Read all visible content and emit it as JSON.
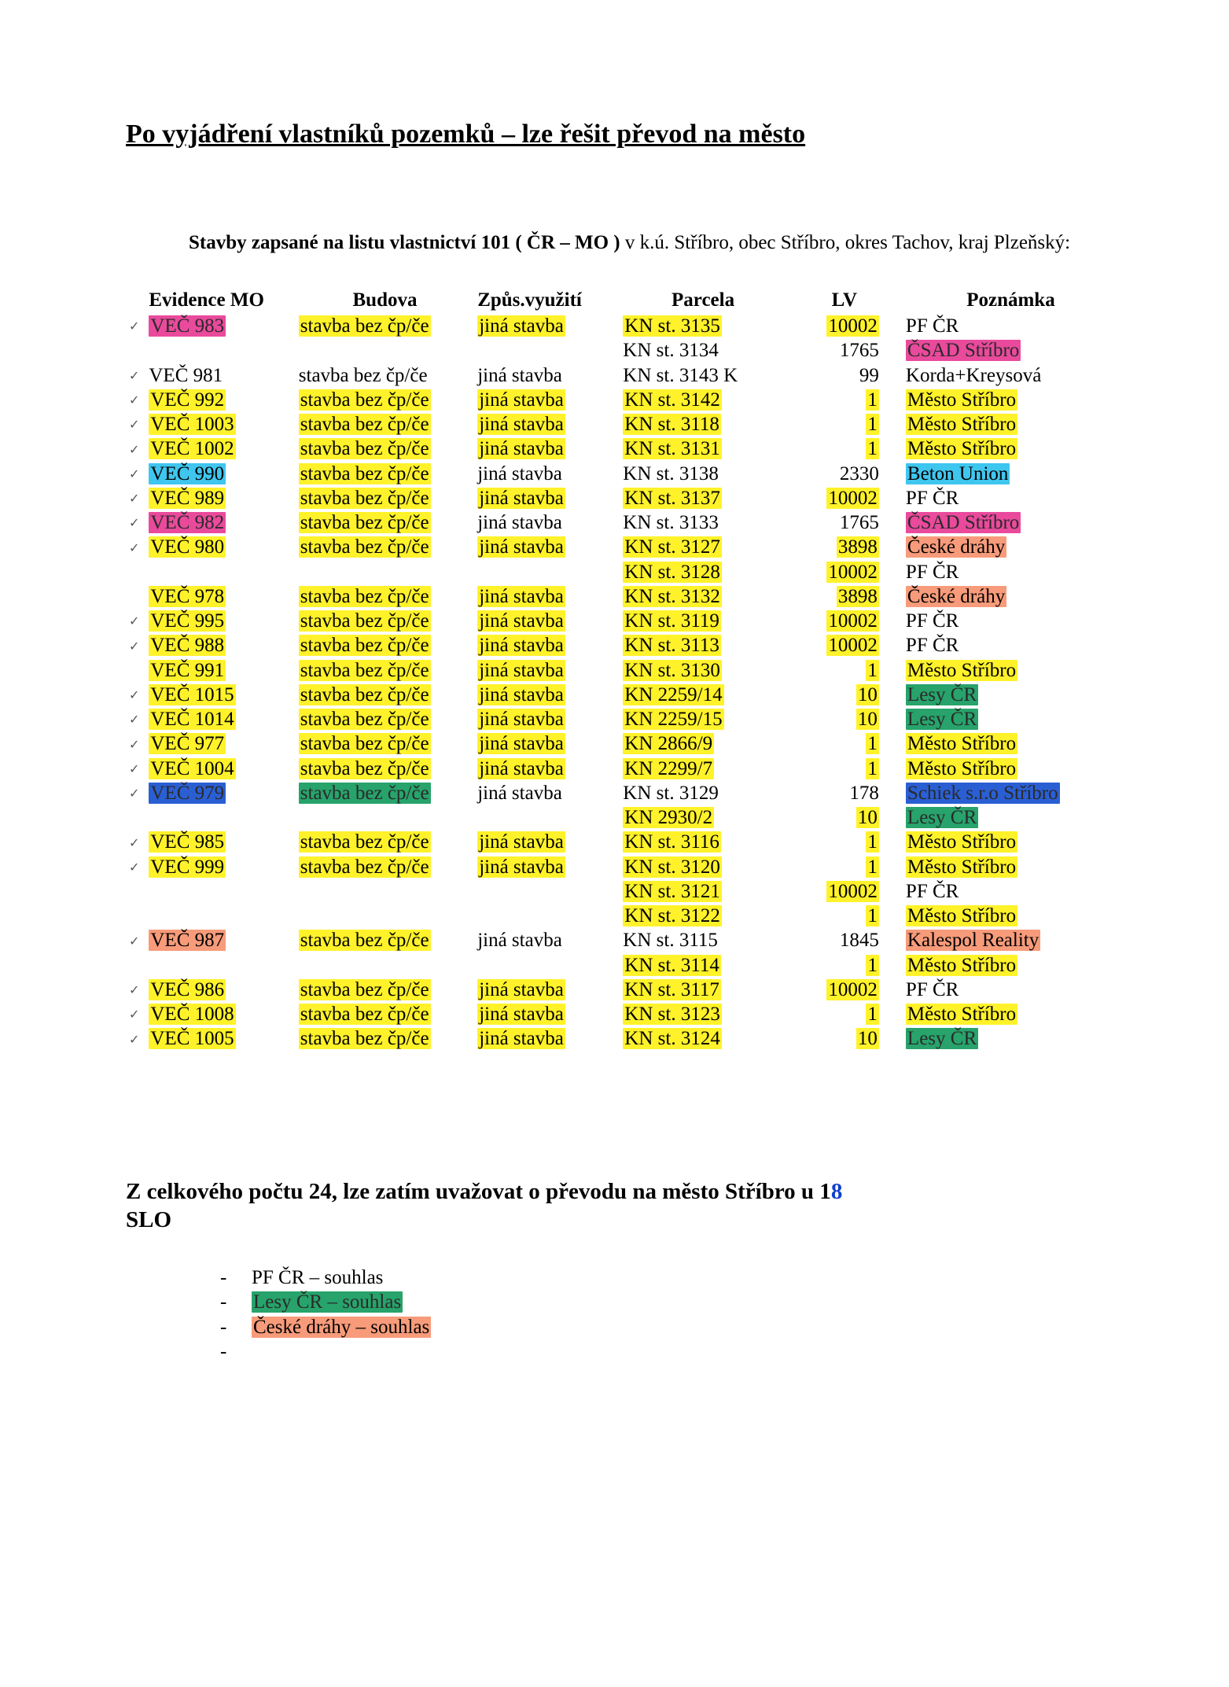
{
  "colors": {
    "yellow": "#fff22a",
    "pink": "#e94a9c",
    "cyan": "#3fc6ef",
    "green": "#27a36b",
    "salmon": "#f79b7a",
    "blue": "#2a5fd4",
    "text_black": "#000000",
    "text_dim": "#2a2a2a"
  },
  "title": "Po vyjádření vlastníků pozemků – lze řešit převod na město",
  "intro": {
    "prefix_bold": "Stavby zapsané na listu vlastnictví 101 ( ČR – MO )",
    "rest": " v k.ú. Stříbro, obec Stříbro, okres Tachov, kraj Plzeňský:"
  },
  "columns": {
    "evidence": "Evidence MO",
    "budova": "Budova",
    "vyuziti": "Způs.využití",
    "parcela": "Parcela",
    "lv": "LV",
    "poznamka": "Poznámka"
  },
  "col_widths": {
    "evidence": "180px",
    "budova": "215px",
    "vyuziti": "175px",
    "parcela": "200px",
    "lv": "140px",
    "poznamka": "260px"
  },
  "rows": [
    {
      "tick": "✓",
      "ev": {
        "t": "VEČ 983",
        "bg": "pink",
        "fg": "text_dim"
      },
      "bud": {
        "t": "stavba bez čp/če",
        "bg": "yellow"
      },
      "vy": {
        "t": "jiná stavba",
        "bg": "yellow"
      },
      "par": {
        "t": "KN st. 3135",
        "bg": "yellow"
      },
      "lv": {
        "t": "10002",
        "bg": "yellow"
      },
      "poz": {
        "t": "PF ČR"
      }
    },
    {
      "tick": "",
      "ev": {
        "t": ""
      },
      "bud": {
        "t": ""
      },
      "vy": {
        "t": ""
      },
      "par": {
        "t": "KN st. 3134"
      },
      "lv": {
        "t": "1765"
      },
      "poz": {
        "t": "ČSAD Stříbro",
        "bg": "pink",
        "fg": "text_dim"
      }
    },
    {
      "tick": "✓",
      "ev": {
        "t": "VEČ 981"
      },
      "bud": {
        "t": "stavba bez čp/če"
      },
      "vy": {
        "t": "jiná stavba"
      },
      "par": {
        "t": "KN st. 3143 K"
      },
      "lv": {
        "t": "99"
      },
      "poz": {
        "t": "Korda+Kreysová"
      }
    },
    {
      "tick": "✓",
      "ev": {
        "t": "VEČ 992",
        "bg": "yellow"
      },
      "bud": {
        "t": "stavba bez čp/če",
        "bg": "yellow"
      },
      "vy": {
        "t": "jiná stavba",
        "bg": "yellow"
      },
      "par": {
        "t": "KN st. 3142",
        "bg": "yellow"
      },
      "lv": {
        "t": "1",
        "bg": "yellow"
      },
      "poz": {
        "t": "Město Stříbro",
        "bg": "yellow"
      }
    },
    {
      "tick": "✓",
      "ev": {
        "t": "VEČ 1003",
        "bg": "yellow"
      },
      "bud": {
        "t": "stavba bez čp/če",
        "bg": "yellow"
      },
      "vy": {
        "t": "jiná stavba",
        "bg": "yellow"
      },
      "par": {
        "t": "KN st. 3118",
        "bg": "yellow"
      },
      "lv": {
        "t": "1",
        "bg": "yellow"
      },
      "poz": {
        "t": "Město Stříbro",
        "bg": "yellow"
      }
    },
    {
      "tick": "✓",
      "ev": {
        "t": "VEČ 1002",
        "bg": "yellow"
      },
      "bud": {
        "t": "stavba bez čp/če",
        "bg": "yellow"
      },
      "vy": {
        "t": "jiná stavba",
        "bg": "yellow"
      },
      "par": {
        "t": "KN st. 3131",
        "bg": "yellow"
      },
      "lv": {
        "t": "1",
        "bg": "yellow"
      },
      "poz": {
        "t": "Město Stříbro",
        "bg": "yellow"
      }
    },
    {
      "tick": "✓",
      "ev": {
        "t": "VEČ 990",
        "bg": "cyan"
      },
      "bud": {
        "t": "stavba bez čp/če",
        "bg": "yellow"
      },
      "vy": {
        "t": "jiná stavba"
      },
      "par": {
        "t": "KN st. 3138"
      },
      "lv": {
        "t": "2330"
      },
      "poz": {
        "t": "Beton Union",
        "bg": "cyan"
      }
    },
    {
      "tick": "✓",
      "ev": {
        "t": "VEČ 989",
        "bg": "yellow"
      },
      "bud": {
        "t": "stavba bez čp/če",
        "bg": "yellow"
      },
      "vy": {
        "t": "jiná stavba",
        "bg": "yellow"
      },
      "par": {
        "t": "KN st. 3137",
        "bg": "yellow"
      },
      "lv": {
        "t": "10002",
        "bg": "yellow"
      },
      "poz": {
        "t": "PF ČR"
      }
    },
    {
      "tick": "✓",
      "ev": {
        "t": "VEČ 982",
        "bg": "pink",
        "fg": "text_dim"
      },
      "bud": {
        "t": "stavba bez čp/če",
        "bg": "yellow"
      },
      "vy": {
        "t": "jiná stavba"
      },
      "par": {
        "t": "KN st. 3133"
      },
      "lv": {
        "t": "1765"
      },
      "poz": {
        "t": "ČSAD Stříbro",
        "bg": "pink",
        "fg": "text_dim"
      }
    },
    {
      "tick": "✓",
      "ev": {
        "t": "VEČ 980",
        "bg": "yellow"
      },
      "bud": {
        "t": "stavba bez čp/če",
        "bg": "yellow"
      },
      "vy": {
        "t": "jiná stavba",
        "bg": "yellow"
      },
      "par": {
        "t": "KN st. 3127",
        "bg": "yellow"
      },
      "lv": {
        "t": "3898",
        "bg": "yellow"
      },
      "poz": {
        "t": "České dráhy",
        "bg": "salmon"
      }
    },
    {
      "tick": "",
      "ev": {
        "t": ""
      },
      "bud": {
        "t": ""
      },
      "vy": {
        "t": ""
      },
      "par": {
        "t": "KN st. 3128",
        "bg": "yellow"
      },
      "lv": {
        "t": "10002",
        "bg": "yellow"
      },
      "poz": {
        "t": "PF ČR"
      }
    },
    {
      "tick": "",
      "ev": {
        "t": "VEČ 978",
        "bg": "yellow"
      },
      "bud": {
        "t": "stavba bez čp/če",
        "bg": "yellow"
      },
      "vy": {
        "t": "jiná stavba",
        "bg": "yellow"
      },
      "par": {
        "t": "KN st. 3132",
        "bg": "yellow"
      },
      "lv": {
        "t": "3898",
        "bg": "yellow"
      },
      "poz": {
        "t": "České dráhy",
        "bg": "salmon"
      }
    },
    {
      "tick": "✓",
      "ev": {
        "t": "VEČ 995",
        "bg": "yellow"
      },
      "bud": {
        "t": "stavba bez čp/če",
        "bg": "yellow"
      },
      "vy": {
        "t": "jiná stavba",
        "bg": "yellow"
      },
      "par": {
        "t": "KN st. 3119",
        "bg": "yellow"
      },
      "lv": {
        "t": "10002",
        "bg": "yellow"
      },
      "poz": {
        "t": "PF ČR"
      }
    },
    {
      "tick": "✓",
      "ev": {
        "t": "VEČ 988",
        "bg": "yellow"
      },
      "bud": {
        "t": "stavba bez čp/če",
        "bg": "yellow"
      },
      "vy": {
        "t": "jiná stavba",
        "bg": "yellow"
      },
      "par": {
        "t": "KN st. 3113",
        "bg": "yellow"
      },
      "lv": {
        "t": "10002",
        "bg": "yellow"
      },
      "poz": {
        "t": "PF ČR"
      }
    },
    {
      "tick": "",
      "ev": {
        "t": "VEČ 991",
        "bg": "yellow"
      },
      "bud": {
        "t": "stavba bez čp/če",
        "bg": "yellow"
      },
      "vy": {
        "t": "jiná stavba",
        "bg": "yellow"
      },
      "par": {
        "t": "KN st. 3130",
        "bg": "yellow"
      },
      "lv": {
        "t": "1",
        "bg": "yellow"
      },
      "poz": {
        "t": "Město Stříbro",
        "bg": "yellow"
      }
    },
    {
      "tick": "✓",
      "ev": {
        "t": "VEČ 1015",
        "bg": "yellow"
      },
      "bud": {
        "t": "stavba bez čp/če",
        "bg": "yellow"
      },
      "vy": {
        "t": "jiná stavba",
        "bg": "yellow"
      },
      "par": {
        "t": "KN 2259/14",
        "bg": "yellow"
      },
      "lv": {
        "t": "10",
        "bg": "yellow"
      },
      "poz": {
        "t": "Lesy ČR",
        "bg": "green",
        "fg": "text_dim"
      }
    },
    {
      "tick": "✓",
      "ev": {
        "t": "VEČ 1014",
        "bg": "yellow"
      },
      "bud": {
        "t": "stavba bez čp/če",
        "bg": "yellow"
      },
      "vy": {
        "t": "jiná stavba",
        "bg": "yellow"
      },
      "par": {
        "t": "KN 2259/15",
        "bg": "yellow"
      },
      "lv": {
        "t": "10",
        "bg": "yellow"
      },
      "poz": {
        "t": "Lesy ČR",
        "bg": "green",
        "fg": "text_dim"
      }
    },
    {
      "tick": "✓",
      "ev": {
        "t": "VEČ 977",
        "bg": "yellow"
      },
      "bud": {
        "t": "stavba bez čp/če",
        "bg": "yellow"
      },
      "vy": {
        "t": "jiná stavba",
        "bg": "yellow"
      },
      "par": {
        "t": "KN  2866/9",
        "bg": "yellow"
      },
      "lv": {
        "t": "1",
        "bg": "yellow"
      },
      "poz": {
        "t": "Město Stříbro",
        "bg": "yellow"
      }
    },
    {
      "tick": "✓",
      "ev": {
        "t": "VEČ 1004",
        "bg": "yellow"
      },
      "bud": {
        "t": "stavba bez čp/če",
        "bg": "yellow"
      },
      "vy": {
        "t": "jiná stavba",
        "bg": "yellow"
      },
      "par": {
        "t": "KN  2299/7",
        "bg": "yellow"
      },
      "lv": {
        "t": "1",
        "bg": "yellow"
      },
      "poz": {
        "t": "Město Stříbro",
        "bg": "yellow"
      }
    },
    {
      "tick": "✓",
      "ev": {
        "t": "VEČ 979",
        "bg": "blue",
        "fg": "text_dim"
      },
      "bud": {
        "t": "stavba bez čp/če",
        "bg": "green",
        "fg": "text_dim"
      },
      "vy": {
        "t": "jiná stavba"
      },
      "par": {
        "t": "KN st. 3129"
      },
      "lv": {
        "t": "178"
      },
      "poz": {
        "t": "Schiek s.r.o Stříbro",
        "bg": "blue",
        "fg": "text_dim"
      }
    },
    {
      "tick": "",
      "ev": {
        "t": ""
      },
      "bud": {
        "t": ""
      },
      "vy": {
        "t": ""
      },
      "par": {
        "t": "KN  2930/2",
        "bg": "yellow"
      },
      "lv": {
        "t": "10",
        "bg": "yellow"
      },
      "poz": {
        "t": "Lesy ČR",
        "bg": "green",
        "fg": "text_dim"
      }
    },
    {
      "tick": "✓",
      "ev": {
        "t": "VEČ 985",
        "bg": "yellow"
      },
      "bud": {
        "t": "stavba bez čp/če",
        "bg": "yellow"
      },
      "vy": {
        "t": "jiná stavba",
        "bg": "yellow"
      },
      "par": {
        "t": "KN st. 3116",
        "bg": "yellow"
      },
      "lv": {
        "t": "1",
        "bg": "yellow"
      },
      "poz": {
        "t": "Město Stříbro",
        "bg": "yellow"
      }
    },
    {
      "tick": "✓",
      "ev": {
        "t": "VEČ 999",
        "bg": "yellow"
      },
      "bud": {
        "t": "stavba bez čp/če",
        "bg": "yellow"
      },
      "vy": {
        "t": "jiná stavba",
        "bg": "yellow"
      },
      "par": {
        "t": "KN st. 3120",
        "bg": "yellow"
      },
      "lv": {
        "t": "1",
        "bg": "yellow"
      },
      "poz": {
        "t": "Město Stříbro",
        "bg": "yellow"
      }
    },
    {
      "tick": "",
      "ev": {
        "t": ""
      },
      "bud": {
        "t": ""
      },
      "vy": {
        "t": ""
      },
      "par": {
        "t": "KN st. 3121",
        "bg": "yellow"
      },
      "lv": {
        "t": "10002",
        "bg": "yellow"
      },
      "poz": {
        "t": "PF ČR"
      }
    },
    {
      "tick": "",
      "ev": {
        "t": ""
      },
      "bud": {
        "t": ""
      },
      "vy": {
        "t": ""
      },
      "par": {
        "t": "KN st. 3122",
        "bg": "yellow"
      },
      "lv": {
        "t": "1",
        "bg": "yellow"
      },
      "poz": {
        "t": "Město Stříbro",
        "bg": "yellow"
      }
    },
    {
      "tick": "✓",
      "ev": {
        "t": "VEČ 987",
        "bg": "salmon"
      },
      "bud": {
        "t": "stavba bez čp/če",
        "bg": "yellow"
      },
      "vy": {
        "t": "jiná stavba"
      },
      "par": {
        "t": "KN st. 3115"
      },
      "lv": {
        "t": "1845"
      },
      "poz": {
        "t": "Kalespol Reality",
        "bg": "salmon"
      }
    },
    {
      "tick": "",
      "ev": {
        "t": ""
      },
      "bud": {
        "t": ""
      },
      "vy": {
        "t": ""
      },
      "par": {
        "t": "KN st. 3114",
        "bg": "yellow"
      },
      "lv": {
        "t": "1",
        "bg": "yellow"
      },
      "poz": {
        "t": "Město Stříbro",
        "bg": "yellow"
      }
    },
    {
      "tick": "✓",
      "ev": {
        "t": "VEČ 986",
        "bg": "yellow"
      },
      "bud": {
        "t": "stavba bez čp/če",
        "bg": "yellow"
      },
      "vy": {
        "t": "jiná stavba",
        "bg": "yellow"
      },
      "par": {
        "t": "KN st. 3117",
        "bg": "yellow"
      },
      "lv": {
        "t": "10002",
        "bg": "yellow"
      },
      "poz": {
        "t": "PF ČR"
      }
    },
    {
      "tick": "✓",
      "ev": {
        "t": "VEČ 1008",
        "bg": "yellow"
      },
      "bud": {
        "t": "stavba bez čp/če",
        "bg": "yellow"
      },
      "vy": {
        "t": "jiná stavba",
        "bg": "yellow"
      },
      "par": {
        "t": "KN st. 3123",
        "bg": "yellow"
      },
      "lv": {
        "t": "1",
        "bg": "yellow"
      },
      "poz": {
        "t": "Město Stříbro",
        "bg": "yellow"
      }
    },
    {
      "tick": "✓",
      "ev": {
        "t": "VEČ 1005",
        "bg": "yellow"
      },
      "bud": {
        "t": "stavba bez čp/če",
        "bg": "yellow"
      },
      "vy": {
        "t": "jiná stavba",
        "bg": "yellow"
      },
      "par": {
        "t": "KN st. 3124",
        "bg": "yellow"
      },
      "lv": {
        "t": "10",
        "bg": "yellow"
      },
      "poz": {
        "t": "Lesy ČR",
        "bg": "green",
        "fg": "text_dim"
      }
    }
  ],
  "summary": {
    "line1_prefix": "Z celkového počtu 24, lze zatím uvažovat o převodu na město Stříbro u 1",
    "line1_mark": "8",
    "line2": "SLO"
  },
  "bullets": [
    {
      "t": "PF ČR – souhlas"
    },
    {
      "t": "Lesy ČR – souhlas",
      "bg": "green",
      "fg": "text_dim"
    },
    {
      "t": "České dráhy – souhlas",
      "bg": "salmon"
    },
    {
      "t": ""
    }
  ]
}
